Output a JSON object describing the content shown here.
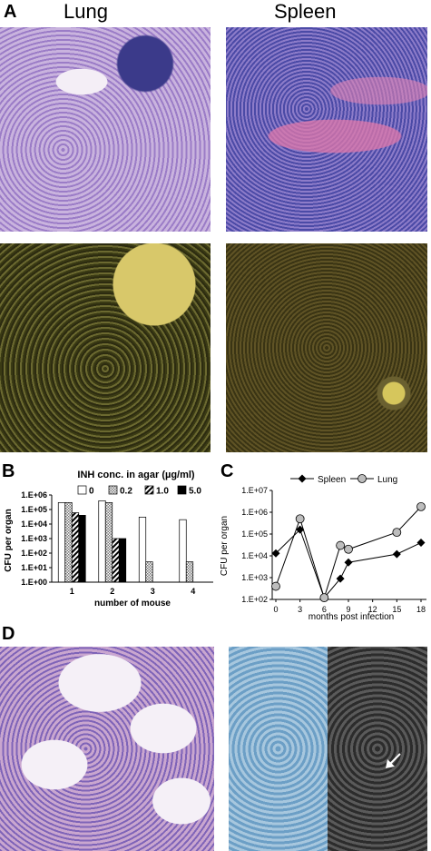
{
  "panel_a": {
    "letter": "A",
    "lung_title": "Lung",
    "spleen_title": "Spleen"
  },
  "panel_b": {
    "letter": "B",
    "legend_title": "INH conc. in agar (µg/ml)",
    "legend_labels": [
      "0",
      "0.2",
      "1.0",
      "5.0"
    ],
    "ylabel": "CFU per organ",
    "xlabel": "number of mouse",
    "ytick_labels": [
      "1.E+00",
      "1.E+01",
      "1.E+02",
      "1.E+03",
      "1.E+04",
      "1.E+05",
      "1.E+06"
    ],
    "xtick_labels": [
      "1",
      "2",
      "3",
      "4"
    ]
  },
  "panel_c": {
    "letter": "C",
    "legend_labels": [
      "Spleen",
      "Lung"
    ],
    "ylabel": "CFU per organ",
    "xlabel": "months post infection",
    "ytick_labels": [
      "1.E+02",
      "1.E+03",
      "1.E+04",
      "1.E+05",
      "1.E+06",
      "1.E+07"
    ],
    "xtick_labels": [
      "0",
      "3",
      "6",
      "9",
      "12",
      "15",
      "18"
    ]
  },
  "panel_d": {
    "letter": "D"
  },
  "chart_data": [
    {
      "type": "bar",
      "categories": [
        "1",
        "2",
        "3",
        "4"
      ],
      "series": [
        {
          "name": "0",
          "values": [
            300000,
            400000,
            30000,
            20000
          ]
        },
        {
          "name": "0.2",
          "values": [
            300000,
            300000,
            25,
            25
          ]
        },
        {
          "name": "1.0",
          "values": [
            60000,
            1000,
            null,
            null
          ]
        },
        {
          "name": "5.0",
          "values": [
            40000,
            1000,
            null,
            null
          ]
        }
      ],
      "xlabel": "number of mouse",
      "ylabel": "CFU per organ",
      "yscale": "log",
      "ylim": [
        1,
        1000000
      ],
      "legend": "top"
    },
    {
      "type": "line",
      "series": [
        {
          "name": "Spleen",
          "x": [
            0,
            3,
            6,
            8,
            9,
            15,
            18
          ],
          "y": [
            13000,
            160000,
            120,
            900,
            5000,
            12000,
            40000
          ]
        },
        {
          "name": "Lung",
          "x": [
            0,
            3,
            6,
            8,
            9,
            15,
            18
          ],
          "y": [
            400,
            500000,
            120,
            30000,
            20000,
            120000,
            1800000
          ]
        }
      ],
      "xlabel": "months post infection",
      "ylabel": "CFU per organ",
      "yscale": "log",
      "ylim": [
        100,
        10000000
      ],
      "xlim": [
        0,
        18
      ],
      "legend": "top"
    }
  ]
}
